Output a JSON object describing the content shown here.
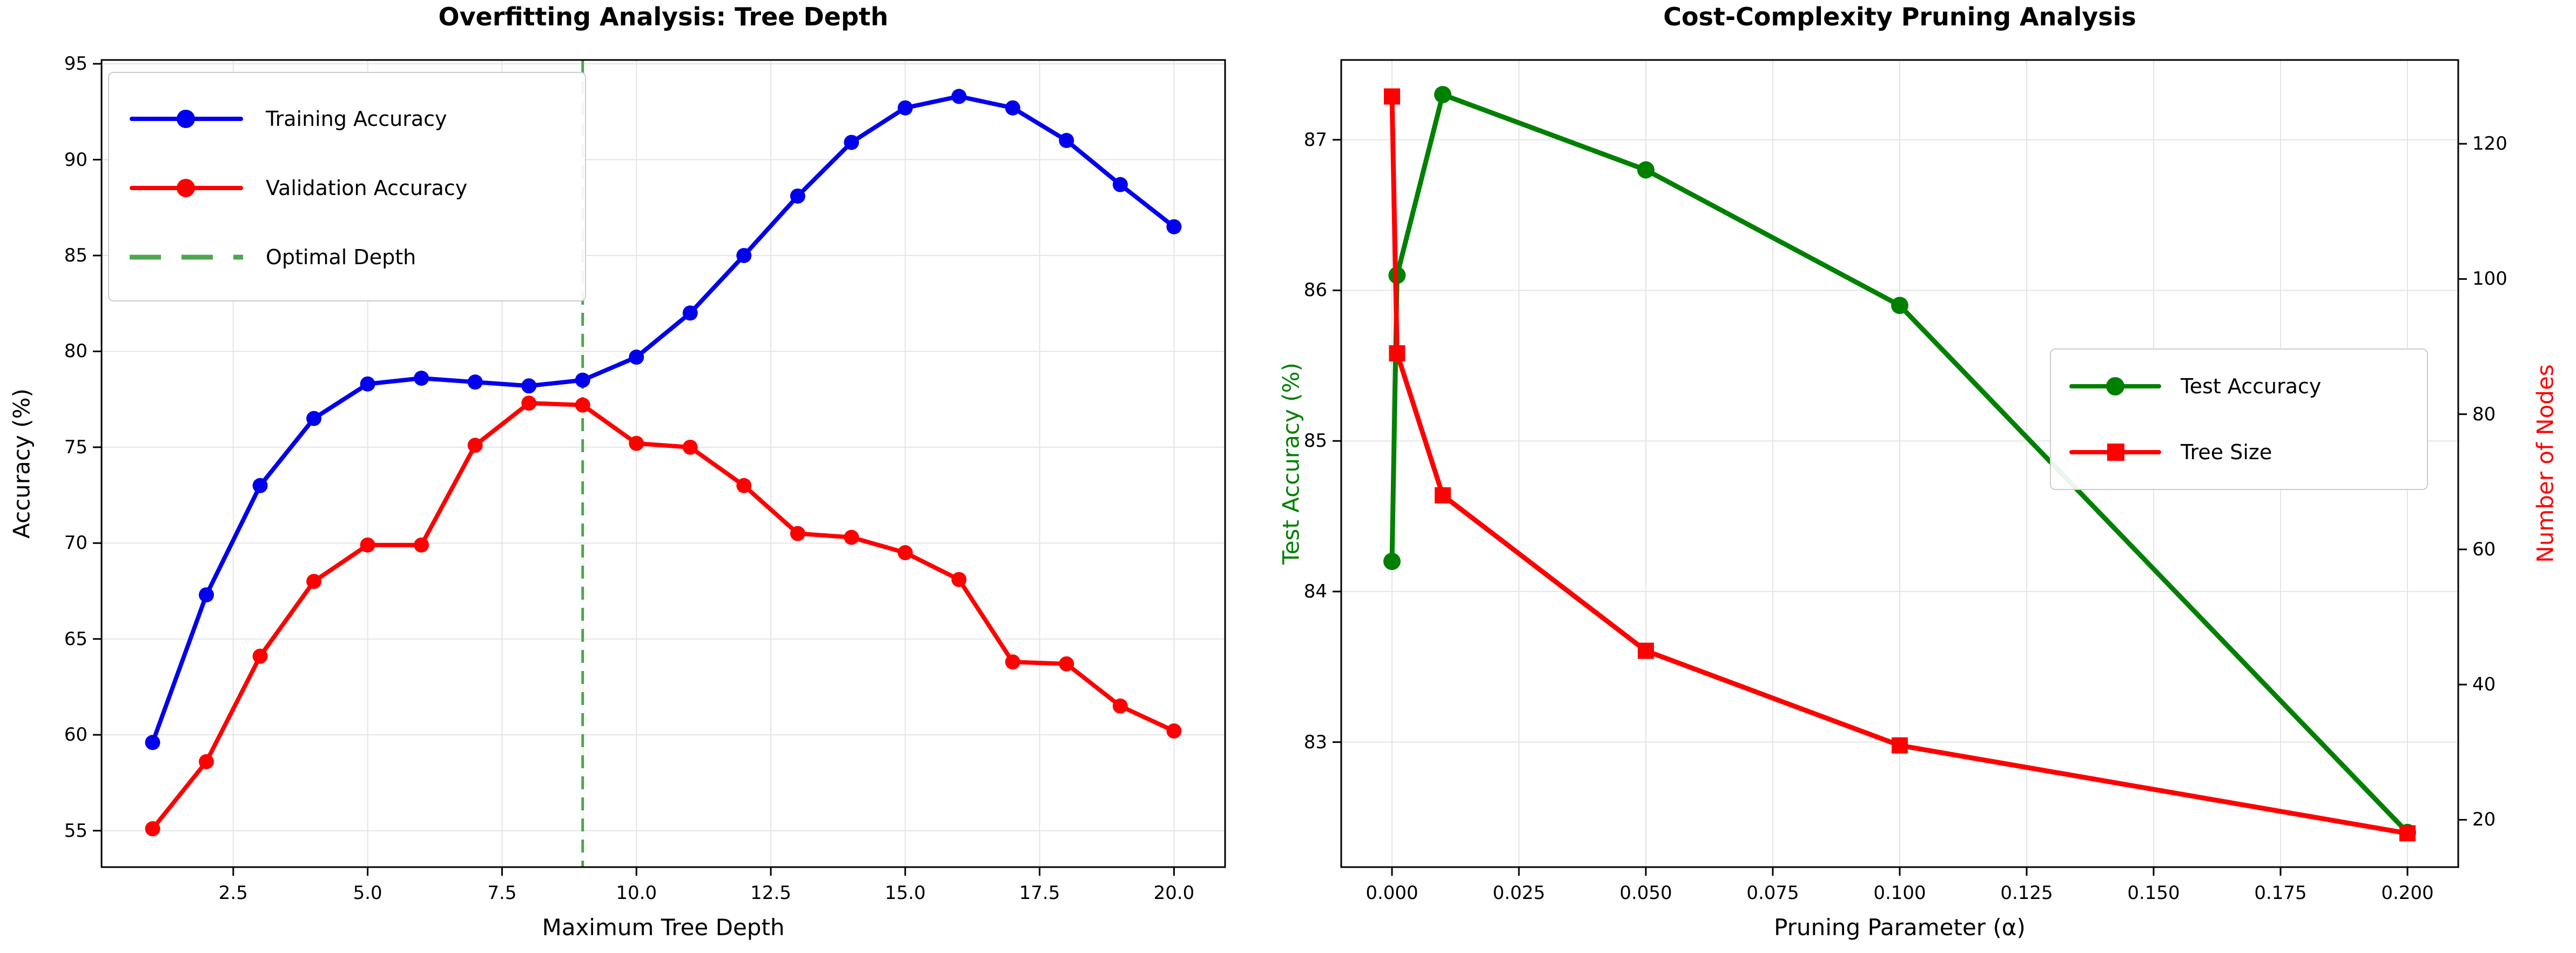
{
  "figure": {
    "background": "#ffffff",
    "grid_color": "#e5e5e5",
    "spine_color": "#000000"
  },
  "chart_data": [
    {
      "type": "line",
      "title": "Overfitting Analysis: Tree Depth",
      "xlabel": "Maximum Tree Depth",
      "ylabel": "Accuracy (%)",
      "x": [
        1,
        2,
        3,
        4,
        5,
        6,
        7,
        8,
        9,
        10,
        11,
        12,
        13,
        14,
        15,
        16,
        17,
        18,
        19,
        20
      ],
      "series": [
        {
          "name": "Training Accuracy",
          "color": "#0000ee",
          "marker": "circle",
          "values": [
            59.6,
            67.3,
            73.0,
            76.5,
            78.3,
            78.6,
            78.4,
            78.2,
            78.5,
            79.7,
            82.0,
            85.0,
            88.1,
            90.9,
            92.7,
            93.3,
            92.7,
            91.0,
            88.7,
            86.5
          ]
        },
        {
          "name": "Validation Accuracy",
          "color": "#ff0000",
          "marker": "circle",
          "values": [
            55.1,
            58.6,
            64.1,
            68.0,
            69.9,
            69.9,
            75.1,
            77.3,
            77.2,
            75.2,
            75.0,
            73.0,
            70.5,
            70.3,
            69.5,
            68.1,
            63.8,
            63.7,
            61.5,
            60.2
          ]
        }
      ],
      "optimal_depth": {
        "label": "Optimal Depth",
        "x": 9,
        "color": "#4da64d",
        "style": "dashed"
      },
      "xticks": [
        2.5,
        5.0,
        7.5,
        10.0,
        12.5,
        15.0,
        17.5,
        20.0
      ],
      "xtick_labels": [
        "2.5",
        "5.0",
        "7.5",
        "10.0",
        "12.5",
        "15.0",
        "17.5",
        "20.0"
      ],
      "yticks": [
        55,
        60,
        65,
        70,
        75,
        80,
        85,
        90,
        95
      ],
      "ytick_labels": [
        "55",
        "60",
        "65",
        "70",
        "75",
        "80",
        "85",
        "90",
        "95"
      ],
      "xlim": [
        0.05,
        20.95
      ],
      "ylim": [
        53.1,
        95.2
      ],
      "grid": true,
      "legend_position": "upper left"
    },
    {
      "type": "line-dual-axis",
      "title": "Cost-Complexity Pruning Analysis",
      "xlabel": "Pruning Parameter (α)",
      "ylabel_left": "Test Accuracy (%)",
      "ylabel_right": "Number of Nodes",
      "ylabel_left_color": "#008000",
      "ylabel_right_color": "#ff0000",
      "x": [
        0.0,
        0.001,
        0.01,
        0.05,
        0.1,
        0.2
      ],
      "series": [
        {
          "name": "Test Accuracy",
          "axis": "left",
          "color": "#008000",
          "marker": "circle",
          "values": [
            84.2,
            86.1,
            87.3,
            86.8,
            85.9,
            82.4
          ]
        },
        {
          "name": "Tree Size",
          "axis": "right",
          "color": "#ff0000",
          "marker": "square",
          "values": [
            127,
            89,
            68,
            45,
            31,
            18
          ]
        }
      ],
      "xticks": [
        0.0,
        0.025,
        0.05,
        0.075,
        0.1,
        0.125,
        0.15,
        0.175,
        0.2
      ],
      "xtick_labels": [
        "0.000",
        "0.025",
        "0.050",
        "0.075",
        "0.100",
        "0.125",
        "0.150",
        "0.175",
        "0.200"
      ],
      "yticks_left": [
        83,
        84,
        85,
        86,
        87
      ],
      "ytick_labels_left": [
        "83",
        "84",
        "85",
        "86",
        "87"
      ],
      "yticks_right": [
        20,
        40,
        60,
        80,
        100,
        120
      ],
      "ytick_labels_right": [
        "20",
        "40",
        "60",
        "80",
        "100",
        "120"
      ],
      "xlim": [
        -0.01,
        0.21
      ],
      "ylim_left": [
        82.17,
        87.53
      ],
      "ylim_right": [
        13.0,
        132.4
      ],
      "grid": true,
      "legend_position": "center right"
    }
  ]
}
